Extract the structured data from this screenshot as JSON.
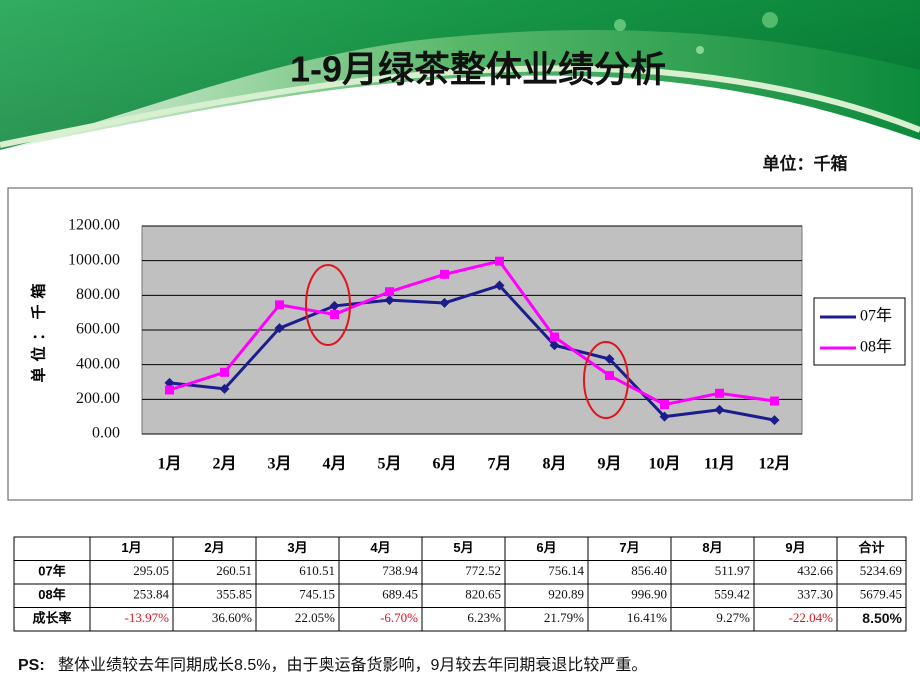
{
  "header": {
    "title": "1-9月绿茶整体业绩分析",
    "unit": "单位：千箱"
  },
  "chart_data": {
    "type": "line",
    "y_label": "单位：千箱",
    "categories": [
      "1月",
      "2月",
      "3月",
      "4月",
      "5月",
      "6月",
      "7月",
      "8月",
      "9月",
      "10月",
      "11月",
      "12月"
    ],
    "series": [
      {
        "name": "07年",
        "color": "#1c1c8c",
        "marker": "diamond",
        "values": [
          295.05,
          260.51,
          610.51,
          738.94,
          772.52,
          756.14,
          856.4,
          511.97,
          432.66,
          100,
          140,
          80
        ]
      },
      {
        "name": "08年",
        "color": "#ff00ff",
        "marker": "square",
        "values": [
          253.84,
          355.85,
          745.15,
          689.45,
          820.65,
          920.89,
          996.9,
          559.42,
          337.3,
          170,
          235,
          190
        ]
      }
    ],
    "ylim": [
      0,
      1200
    ],
    "yticks": [
      {
        "value": 0,
        "label": "0.00"
      },
      {
        "value": 200,
        "label": "200.00"
      },
      {
        "value": 400,
        "label": "400.00"
      },
      {
        "value": 600,
        "label": "600.00"
      },
      {
        "value": 800,
        "label": "800.00"
      },
      {
        "value": 1000,
        "label": "1000.00"
      },
      {
        "value": 1200,
        "label": "1200.00"
      }
    ],
    "grid": true,
    "legend": "right",
    "plot_background": "#c0c0c0"
  },
  "table": {
    "columns": [
      "1月",
      "2月",
      "3月",
      "4月",
      "5月",
      "6月",
      "7月",
      "8月",
      "9月",
      "合计"
    ],
    "rows": [
      {
        "label": "07年",
        "cells": [
          "295.05",
          "260.51",
          "610.51",
          "738.94",
          "772.52",
          "756.14",
          "856.40",
          "511.97",
          "432.66",
          "5234.69"
        ]
      },
      {
        "label": "08年",
        "cells": [
          "253.84",
          "355.85",
          "745.15",
          "689.45",
          "820.65",
          "920.89",
          "996.90",
          "559.42",
          "337.30",
          "5679.45"
        ]
      },
      {
        "label": "成长率",
        "cells": [
          "-13.97%",
          "36.60%",
          "22.05%",
          "-6.70%",
          "6.23%",
          "21.79%",
          "16.41%",
          "9.27%",
          "-22.04%",
          "8.50%"
        ]
      }
    ]
  },
  "note": {
    "prefix": "PS:",
    "text": "整体业绩较去年同期成长8.5%，由于奥运备货影响，9月较去年同期衰退比较严重。"
  }
}
